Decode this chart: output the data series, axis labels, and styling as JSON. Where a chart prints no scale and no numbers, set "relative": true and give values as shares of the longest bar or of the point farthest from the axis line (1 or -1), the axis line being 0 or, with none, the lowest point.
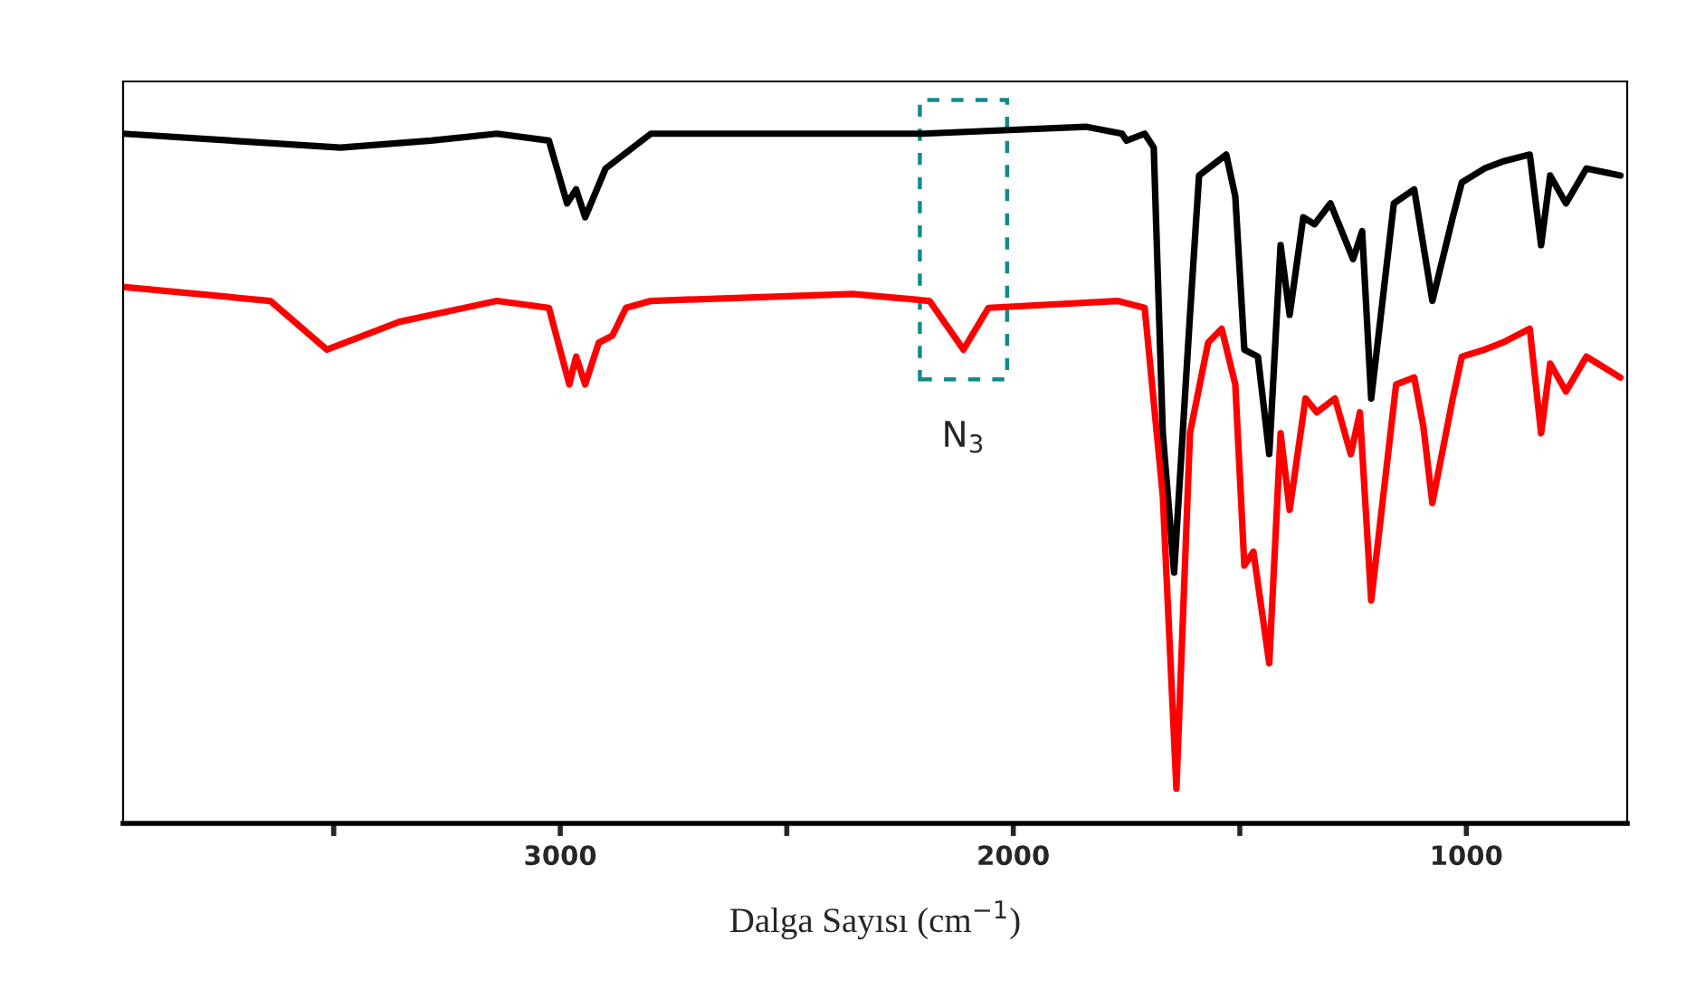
{
  "chart_data": {
    "type": "line",
    "relative": true,
    "xlabel": "Dalga Sayısı (cm$^{−1}$)",
    "xlim": [
      3965,
      645
    ],
    "xticks": [
      {
        "value": 3500,
        "label": null
      },
      3000,
      {
        "value": 2500,
        "label": null
      },
      2000,
      {
        "value": 1500,
        "label": null
      },
      1000
    ],
    "tick_labels": "x",
    "grid": false,
    "marker": "none",
    "line_style": "solid",
    "annotations": [
      {
        "text": "N$_{3}$",
        "x": 2110,
        "y": 0.68
      }
    ],
    "series": [
      {
        "color": "#000000",
        "x": [
          3965,
          3485,
          3285,
          3140,
          3025,
          2985,
          2965,
          2945,
          2900,
          2800,
          2200,
          1840,
          1760,
          1750,
          1710,
          1690,
          1670,
          1645,
          1610,
          1590,
          1530,
          1510,
          1490,
          1460,
          1435,
          1410,
          1390,
          1360,
          1335,
          1300,
          1250,
          1230,
          1210,
          1160,
          1115,
          1095,
          1075,
          1030,
          1010,
          960,
          920,
          860,
          835,
          815,
          780,
          735,
          660
        ],
        "values": [
          0.99,
          0.97,
          0.98,
          0.99,
          0.98,
          0.89,
          0.91,
          0.87,
          0.94,
          0.99,
          0.99,
          1.0,
          0.99,
          0.98,
          0.99,
          0.97,
          0.56,
          0.36,
          0.73,
          0.93,
          0.96,
          0.9,
          0.68,
          0.67,
          0.53,
          0.83,
          0.73,
          0.87,
          0.86,
          0.89,
          0.81,
          0.85,
          0.61,
          0.89,
          0.91,
          0.83,
          0.75,
          0.87,
          0.92,
          0.94,
          0.95,
          0.96,
          0.83,
          0.93,
          0.89,
          0.94,
          0.93
        ]
      },
      {
        "color": "#ff0000",
        "x": [
          3965,
          3640,
          3515,
          3355,
          3140,
          3025,
          2980,
          2965,
          2945,
          2915,
          2885,
          2855,
          2800,
          2355,
          2185,
          2110,
          2055,
          1770,
          1710,
          1670,
          1640,
          1610,
          1570,
          1540,
          1510,
          1490,
          1470,
          1435,
          1410,
          1390,
          1355,
          1330,
          1290,
          1255,
          1235,
          1210,
          1155,
          1115,
          1095,
          1075,
          1030,
          1010,
          960,
          920,
          860,
          835,
          815,
          780,
          735,
          660
        ],
        "values": [
          0.77,
          0.75,
          0.68,
          0.72,
          0.75,
          0.74,
          0.63,
          0.67,
          0.63,
          0.69,
          0.7,
          0.74,
          0.75,
          0.76,
          0.75,
          0.68,
          0.74,
          0.75,
          0.74,
          0.47,
          0.05,
          0.56,
          0.69,
          0.71,
          0.63,
          0.37,
          0.39,
          0.23,
          0.56,
          0.45,
          0.61,
          0.59,
          0.61,
          0.53,
          0.59,
          0.32,
          0.63,
          0.64,
          0.57,
          0.46,
          0.61,
          0.67,
          0.68,
          0.69,
          0.71,
          0.56,
          0.66,
          0.62,
          0.67,
          0.64
        ]
      }
    ]
  }
}
